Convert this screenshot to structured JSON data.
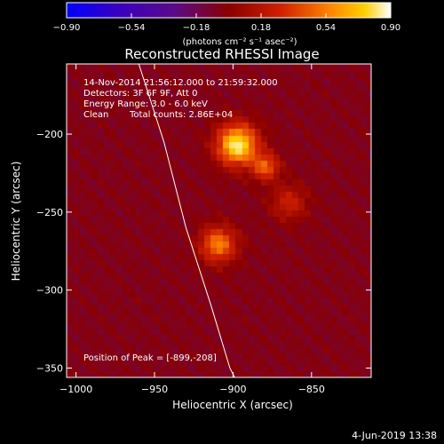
{
  "chart_data": {
    "type": "heatmap",
    "title": "Reconstructed RHESSI Image",
    "xlabel": "Heliocentric X (arcsec)",
    "ylabel": "Heliocentric Y (arcsec)",
    "xlim": [
      -1006,
      -812
    ],
    "ylim": [
      -356,
      -155
    ],
    "x_ticks": [
      -1000,
      -950,
      -900,
      -850
    ],
    "y_ticks": [
      -350,
      -300,
      -250,
      -200
    ],
    "x_tick_labels": [
      "−1000",
      "−950",
      "−900",
      "−850"
    ],
    "y_tick_labels": [
      "−350",
      "−300",
      "−250",
      "−200"
    ],
    "colorbar": {
      "range": [
        -0.9,
        0.9
      ],
      "ticks": [
        -0.9,
        -0.54,
        -0.18,
        0.18,
        0.54,
        0.9
      ],
      "tick_labels": [
        "−0.90",
        "−0.54",
        "−0.18",
        "0.18",
        "0.54",
        "0.90"
      ],
      "unit_label": "(photons cm⁻² s⁻¹ asec⁻²)",
      "colormap": "rainbow-to-hot"
    },
    "sources": [
      {
        "x": -899,
        "y": -208,
        "peak": 0.9,
        "sigma": 9
      },
      {
        "x": -881,
        "y": -222,
        "peak": 0.5,
        "sigma": 6
      },
      {
        "x": -911,
        "y": -272,
        "peak": 0.6,
        "sigma": 8
      },
      {
        "x": -866,
        "y": -245,
        "peak": 0.3,
        "sigma": 8
      }
    ],
    "limb": [
      [
        -960,
        -155
      ],
      [
        -944,
        -205
      ],
      [
        -930,
        -260
      ],
      [
        -914,
        -310
      ],
      [
        -902,
        -350
      ],
      [
        -899,
        -356
      ]
    ],
    "grid": false
  },
  "annotations": {
    "time_range": "14-Nov-2014 21:56:12.000 to 21:59:32.000",
    "detectors": "Detectors: 3F 6F 9F, Att 0",
    "energy_range": "Energy Range: 3.0 - 6.0 keV",
    "clean_label": "Clean",
    "total_counts": "Total counts: 2.86E+04",
    "peak_position": "Position of Peak = [-899,-208]"
  },
  "footer": {
    "date": "4-Jun-2019 13:38"
  },
  "colors": {
    "background": "#000000",
    "text": "#ffffff",
    "limb": "#ffffff"
  }
}
